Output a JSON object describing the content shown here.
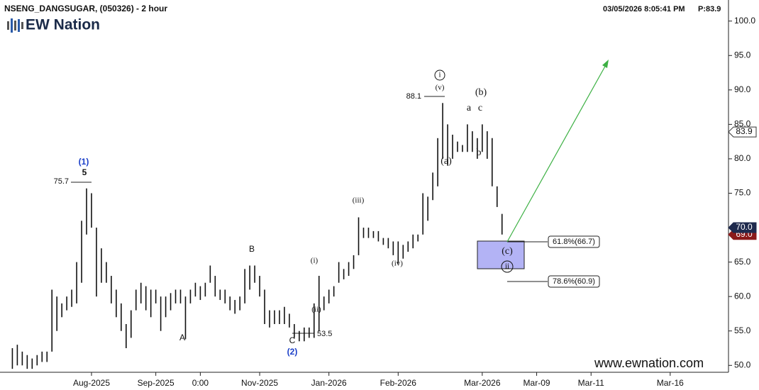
{
  "chart_data": {
    "type": "ohlc",
    "title": "NSENG_DANGSUGAR, (050326) - 2 hour",
    "timestamp": "03/05/2026 8:05:41 PM",
    "price_text": "P:83.9",
    "logo": "EW Nation",
    "watermark": "www.ewnation.com",
    "color": "#111111",
    "categories": [
      null,
      null,
      null,
      null,
      null,
      null,
      null,
      null,
      null,
      null,
      null,
      null,
      null,
      null,
      null,
      null,
      null,
      null,
      "Aug-2025",
      null,
      null,
      null,
      null,
      null,
      null,
      null,
      null,
      null,
      null,
      null,
      null,
      "Sep-2025",
      null,
      null,
      null,
      null,
      null,
      null,
      null,
      null,
      "0:00",
      null,
      null,
      null,
      null,
      null,
      null,
      null,
      null,
      null,
      null,
      null,
      "Nov-2025",
      null,
      null,
      null,
      null,
      null,
      null,
      null,
      null,
      null,
      null,
      null,
      null,
      null,
      "Jan-2026",
      null,
      null,
      null,
      null,
      null,
      null,
      null,
      null,
      null,
      null,
      null,
      null,
      null,
      "Feb-2026",
      null,
      null,
      null,
      null,
      null,
      null,
      null,
      null,
      null,
      null,
      null,
      null,
      null,
      null,
      null,
      null,
      "Mar-2026",
      null,
      null,
      null,
      null,
      null,
      null,
      null,
      null,
      null,
      null,
      "Mar-09",
      null,
      null,
      null,
      null,
      null,
      null,
      null,
      null,
      null,
      null,
      "Mar-11",
      null,
      null,
      null,
      null,
      null,
      null,
      null,
      null,
      null,
      null,
      null,
      null,
      null,
      null,
      null,
      "Mar-16",
      null,
      null,
      null,
      null,
      null,
      null,
      null,
      null,
      null,
      null,
      null
    ],
    "high": [
      null,
      null,
      52.5,
      53,
      52,
      51.5,
      51,
      51.5,
      52,
      52,
      61,
      60,
      59,
      60,
      61,
      65,
      71,
      75.7,
      75,
      70,
      67,
      65,
      63,
      61,
      59,
      56,
      58,
      61,
      62,
      61.5,
      61,
      61,
      60,
      60,
      60.5,
      61,
      61,
      60,
      61,
      62,
      61.5,
      62,
      64.5,
      63,
      61,
      61,
      60,
      59.5,
      60,
      64,
      64.5,
      64.5,
      63,
      61,
      58,
      58,
      58,
      58.5,
      57.5,
      56,
      55,
      55.5,
      55.5,
      59,
      63,
      60,
      61,
      61.5,
      65,
      64,
      65,
      66,
      71.5,
      70,
      70,
      69.5,
      69.5,
      68.5,
      68.5,
      68,
      68,
      67.5,
      68,
      69,
      69,
      75,
      74.5,
      78,
      83,
      88.1,
      85,
      83.5,
      82.5,
      82,
      85,
      84,
      83,
      85,
      84,
      83,
      76,
      72,
      null,
      null,
      null,
      null,
      null,
      null,
      null,
      null,
      null,
      null,
      null,
      null,
      null,
      null,
      null,
      null,
      null,
      null,
      null,
      null,
      null,
      null,
      null,
      null,
      null,
      null,
      null,
      null,
      null,
      null,
      null,
      null,
      null,
      null,
      null,
      null,
      null,
      null,
      null,
      null,
      null,
      null,
      null,
      null,
      null
    ],
    "low": [
      null,
      null,
      49.5,
      50,
      50,
      49.5,
      49.5,
      50,
      50.5,
      50.5,
      52,
      55,
      57,
      58,
      58.5,
      59,
      62,
      69,
      70,
      60,
      62,
      62,
      59,
      57,
      55,
      52.5,
      54,
      58,
      59,
      58,
      57,
      59,
      55,
      57,
      58,
      59,
      59,
      53.8,
      59,
      60,
      59.5,
      60,
      62,
      60,
      59.5,
      59,
      58,
      57.5,
      58,
      59,
      61,
      62,
      60,
      56,
      55.5,
      56,
      56,
      56,
      55.5,
      54,
      53.5,
      53.5,
      54,
      54,
      55,
      58,
      59,
      60,
      62,
      62.5,
      63,
      64,
      66,
      68.5,
      68.5,
      68.5,
      68,
      67.5,
      67,
      66,
      64.8,
      65.5,
      66.5,
      67,
      68,
      69,
      71,
      74,
      76,
      80,
      79,
      80,
      81,
      81,
      81,
      81,
      80,
      81,
      80,
      76,
      73,
      69,
      null,
      null,
      null,
      null,
      null,
      null,
      null,
      null,
      null,
      null,
      null,
      null,
      null,
      null,
      null,
      null,
      null,
      null,
      null,
      null,
      null,
      null,
      null,
      null,
      null,
      null,
      null,
      null,
      null,
      null,
      null,
      null,
      null,
      null,
      null,
      null,
      null,
      null,
      null,
      null,
      null,
      null,
      null,
      null,
      null
    ],
    "ylim": [
      49,
      101
    ],
    "yticks": [
      {
        "value": 50,
        "label": "50.0"
      },
      {
        "value": 55,
        "label": "55.0"
      },
      {
        "value": 60,
        "label": "60.0"
      },
      {
        "value": 65,
        "label": "65.0"
      },
      {
        "value": 70,
        "label": "70.0"
      },
      {
        "value": 75,
        "label": "75.0"
      },
      {
        "value": 80,
        "label": "80.0"
      },
      {
        "value": 85,
        "label": "85.0"
      },
      {
        "value": 90,
        "label": "90.0"
      },
      {
        "value": 95,
        "label": "95.0"
      },
      {
        "value": 100,
        "label": "100.0"
      }
    ],
    "price_labels": [
      {
        "value": 83.9,
        "label": "83.9",
        "color": "#ffffff"
      },
      {
        "value": 69.0,
        "label": "69.0",
        "color": "#8b1a1a"
      },
      {
        "value": 70.0,
        "label": "70.0",
        "color": "#1f2a4d"
      }
    ],
    "annotations": [
      "(1)",
      "5",
      "75.7",
      "A",
      "B",
      "C",
      "(2)",
      "53.5",
      "(i)",
      "(ii)",
      "(iii)",
      "(iv)",
      "(v)",
      "i",
      "88.1",
      "(a)",
      "(b)",
      "a",
      "c",
      "b",
      "(c)",
      "ii",
      "61.8%(66.7)",
      "78.6%(60.9)"
    ]
  }
}
